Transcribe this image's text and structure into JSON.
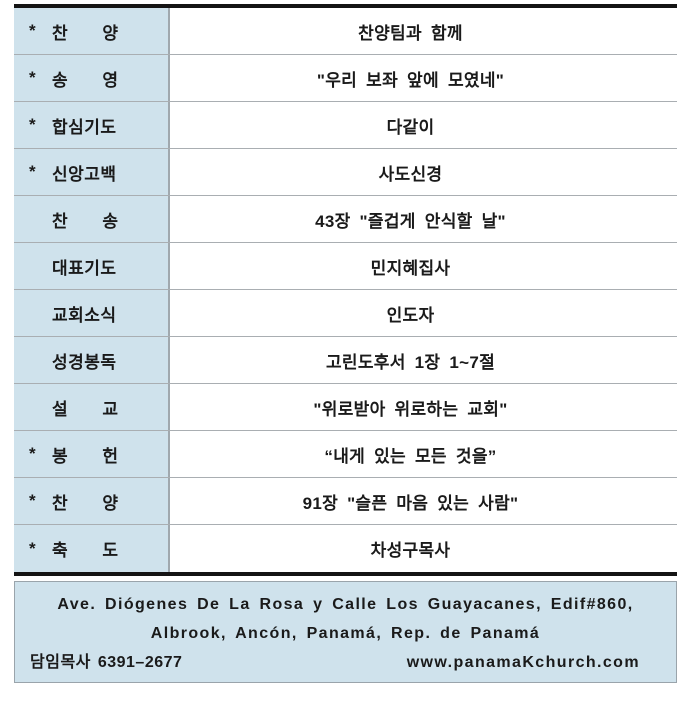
{
  "colors": {
    "cell_bg": "#cfe2ec",
    "thick_border": "#141414",
    "thin_border": "#a9aeb2",
    "column_divider": "#a0a8ae",
    "footer_border": "#9aa4ab"
  },
  "worship_order": {
    "rows": [
      {
        "star": "*",
        "label": "찬 양",
        "value": "찬양팀과 함께"
      },
      {
        "star": "*",
        "label": "송 영",
        "value": "\"우리 보좌 앞에 모였네\""
      },
      {
        "star": "*",
        "label": "합심기도",
        "value": "다같이"
      },
      {
        "star": "*",
        "label": "신앙고백",
        "value": "사도신경"
      },
      {
        "star": "",
        "label": "찬 송",
        "value": "43장 \"즐겁게 안식할 날\""
      },
      {
        "star": "",
        "label": "대표기도",
        "value": "민지혜집사"
      },
      {
        "star": "",
        "label": "교회소식",
        "value": "인도자"
      },
      {
        "star": "",
        "label": "성경봉독",
        "value": "고린도후서 1장 1~7절"
      },
      {
        "star": "",
        "label": "설 교",
        "value": "\"위로받아 위로하는 교회\""
      },
      {
        "star": "*",
        "label": "봉 헌",
        "value": "“내게 있는 모든 것을”"
      },
      {
        "star": "*",
        "label": "찬 양",
        "value": "91장 \"슬픈 마음 있는 사람\""
      },
      {
        "star": "*",
        "label": "축 도",
        "value": "차성구목사"
      }
    ]
  },
  "footer": {
    "address_line1": "Ave. Diógenes De La Rosa y Calle Los Guayacanes, Edif#860,",
    "address_line2": "Albrook, Ancón, Panamá, Rep. de Panamá",
    "pastor_phone": "담임목사 6391–2677",
    "website": "www.panamaKchurch.com"
  }
}
